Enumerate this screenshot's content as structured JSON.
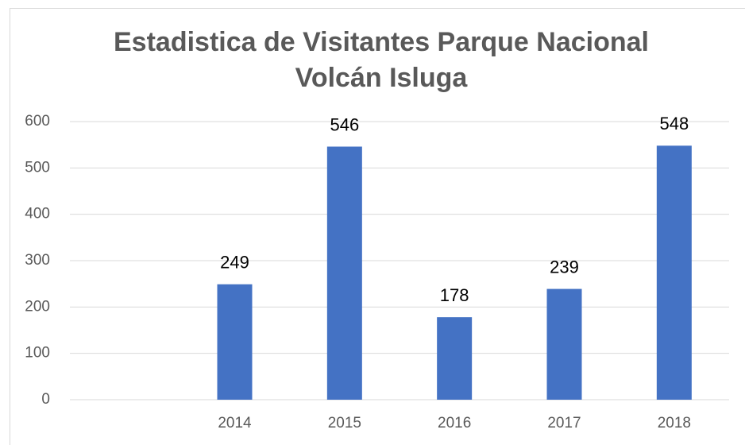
{
  "chart_data": {
    "type": "bar",
    "title": [
      "Estadistica de Visitantes Parque Nacional",
      "Volcán Isluga"
    ],
    "categories": [
      null,
      "2014",
      "2015",
      "2016",
      "2017",
      "2018"
    ],
    "values": [
      null,
      249,
      546,
      178,
      239,
      548
    ],
    "color": "#4472c4",
    "ylim": [
      0,
      600
    ],
    "yticks": [
      0,
      100,
      200,
      300,
      400,
      500,
      600
    ],
    "grid": true
  }
}
